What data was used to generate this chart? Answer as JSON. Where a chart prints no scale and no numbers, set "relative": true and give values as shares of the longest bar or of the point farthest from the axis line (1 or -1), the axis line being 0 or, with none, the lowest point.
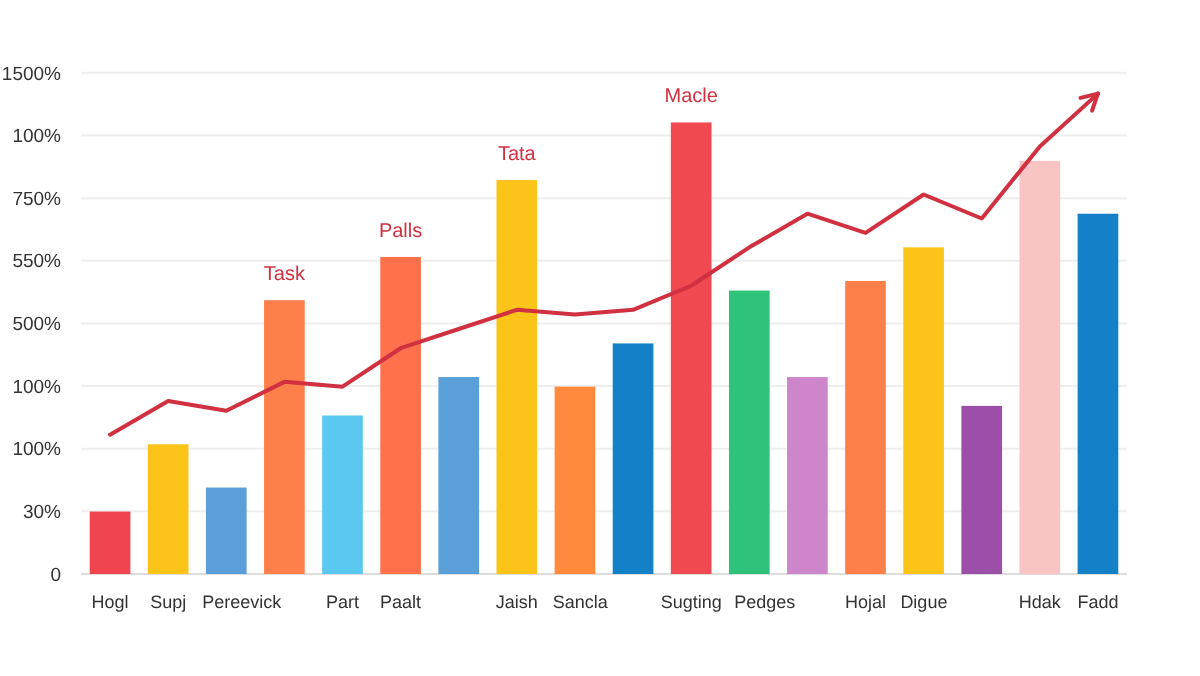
{
  "chart_data": {
    "type": "bar",
    "relative": true,
    "categories": [
      "Hogl",
      "Supj",
      "Pereevick",
      null,
      "Part",
      "Paalt",
      null,
      "Jaish",
      "Sancla",
      null,
      "Sugting",
      "Pedges",
      null,
      "Hojal",
      "Digue",
      null,
      "Hdak",
      "Fadd"
    ],
    "values": [
      0.13,
      0.27,
      0.18,
      0.57,
      0.33,
      0.66,
      0.41,
      0.82,
      0.39,
      0.48,
      0.94,
      0.59,
      0.41,
      0.61,
      0.68,
      0.35,
      0.86,
      0.75
    ],
    "colors": [
      "#f0444f",
      "#fcc419",
      "#5a9fd8",
      "#ff7f4a",
      "#5bc8ef",
      "#ff704d",
      "#5a9fd8",
      "#fcc419",
      "#ff8a3d",
      "#1380c8",
      "#f04a50",
      "#2ec27a",
      "#cf85cc",
      "#ff7f4a",
      "#fcc419",
      "#9b4fa8",
      "#f9c4c4",
      "#1380c8"
    ],
    "series": [
      {
        "type": "line",
        "color": "#d0303f",
        "values": [
          0.29,
          0.36,
          0.34,
          0.4,
          0.39,
          0.47,
          0.51,
          0.55,
          0.54,
          0.55,
          0.6,
          0.68,
          0.75,
          0.71,
          0.79,
          0.74,
          0.89,
          1
        ]
      }
    ],
    "grid": "y",
    "annotations": [
      "0",
      "30%",
      "100%",
      "100%",
      "500%",
      "550%",
      "750%",
      "100%",
      "1500%",
      {
        "text": "Task",
        "y": 0.57
      },
      {
        "text": "Palls",
        "x": "Paalt",
        "y": 0.66
      },
      {
        "text": "Tata",
        "x": "Jaish",
        "y": 0.82
      },
      {
        "text": "Macle",
        "x": "Sugting",
        "y": 0.94
      }
    ]
  }
}
